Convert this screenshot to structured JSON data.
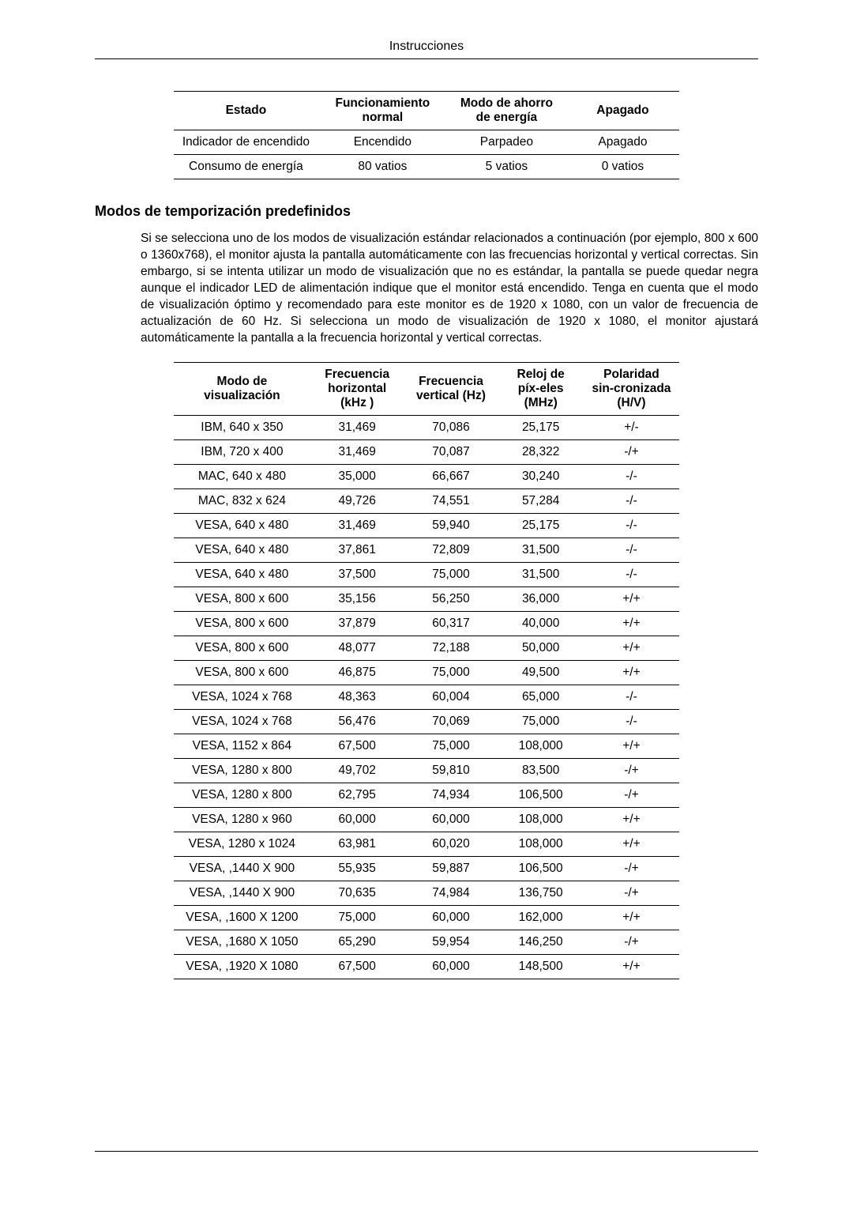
{
  "header": {
    "title": "Instrucciones"
  },
  "status_table": {
    "headers": [
      "Estado",
      "Funcionamiento normal",
      "Modo de ahorro de energía",
      "Apagado"
    ],
    "rows": [
      [
        "Indicador de encendido",
        "Encendido",
        "Parpadeo",
        "Apagado"
      ],
      [
        "Consumo de energía",
        "80 vatios",
        "5 vatios",
        "0 vatios"
      ]
    ]
  },
  "section": {
    "heading": "Modos de temporización predefinidos",
    "paragraph": "Si se selecciona uno de los modos de visualización estándar relacionados a continuación (por ejemplo, 800 x 600 o 1360x768), el monitor ajusta la pantalla automáticamente con las frecuencias horizontal y vertical correctas. Sin embargo, si se intenta utilizar un modo de visualización que no es estándar, la pantalla se puede quedar negra aunque el indicador LED de alimentación indique que el monitor está encendido. Tenga en cuenta que el modo de visualización óptimo y recomendado para este monitor es de 1920 x 1080, con un valor de frecuencia de actualización de 60 Hz. Si selecciona un modo de visualización de 1920 x 1080, el monitor ajustará automáticamente la pantalla a la frecuencia horizontal y vertical correctas."
  },
  "timing_table": {
    "headers": [
      "Modo de visualización",
      "Frecuencia horizontal (kHz )",
      "Frecuencia vertical (Hz)",
      "Reloj de píx-eles (MHz)",
      "Polaridad sin-cronizada (H/V)"
    ],
    "rows": [
      [
        "IBM, 640 x 350",
        "31,469",
        "70,086",
        "25,175",
        "+/-"
      ],
      [
        "IBM, 720 x 400",
        "31,469",
        "70,087",
        "28,322",
        "-/+"
      ],
      [
        "MAC, 640 x 480",
        "35,000",
        "66,667",
        "30,240",
        "-/-"
      ],
      [
        "MAC, 832 x 624",
        "49,726",
        "74,551",
        "57,284",
        "-/-"
      ],
      [
        "VESA, 640 x 480",
        "31,469",
        "59,940",
        "25,175",
        "-/-"
      ],
      [
        "VESA, 640 x 480",
        "37,861",
        "72,809",
        "31,500",
        "-/-"
      ],
      [
        "VESA, 640 x 480",
        "37,500",
        "75,000",
        "31,500",
        "-/-"
      ],
      [
        "VESA, 800 x 600",
        "35,156",
        "56,250",
        "36,000",
        "+/+"
      ],
      [
        "VESA, 800 x 600",
        "37,879",
        "60,317",
        "40,000",
        "+/+"
      ],
      [
        "VESA, 800 x 600",
        "48,077",
        "72,188",
        "50,000",
        "+/+"
      ],
      [
        "VESA, 800 x 600",
        "46,875",
        "75,000",
        "49,500",
        "+/+"
      ],
      [
        "VESA, 1024 x 768",
        "48,363",
        "60,004",
        "65,000",
        "-/-"
      ],
      [
        "VESA, 1024 x 768",
        "56,476",
        "70,069",
        "75,000",
        "-/-"
      ],
      [
        "VESA, 1152 x 864",
        "67,500",
        "75,000",
        "108,000",
        "+/+"
      ],
      [
        "VESA, 1280 x 800",
        "49,702",
        "59,810",
        "83,500",
        "-/+"
      ],
      [
        "VESA, 1280 x 800",
        "62,795",
        "74,934",
        "106,500",
        "-/+"
      ],
      [
        "VESA, 1280 x 960",
        "60,000",
        "60,000",
        "108,000",
        "+/+"
      ],
      [
        "VESA, 1280 x 1024",
        "63,981",
        "60,020",
        "108,000",
        "+/+"
      ],
      [
        "VESA, ,1440 X 900",
        "55,935",
        "59,887",
        "106,500",
        "-/+"
      ],
      [
        "VESA, ,1440 X 900",
        "70,635",
        "74,984",
        "136,750",
        "-/+"
      ],
      [
        "VESA, ,1600 X 1200",
        "75,000",
        "60,000",
        "162,000",
        "+/+"
      ],
      [
        "VESA, ,1680 X 1050",
        "65,290",
        "59,954",
        "146,250",
        "-/+"
      ],
      [
        "VESA, ,1920 X 1080",
        "67,500",
        "60,000",
        "148,500",
        "+/+"
      ]
    ]
  }
}
